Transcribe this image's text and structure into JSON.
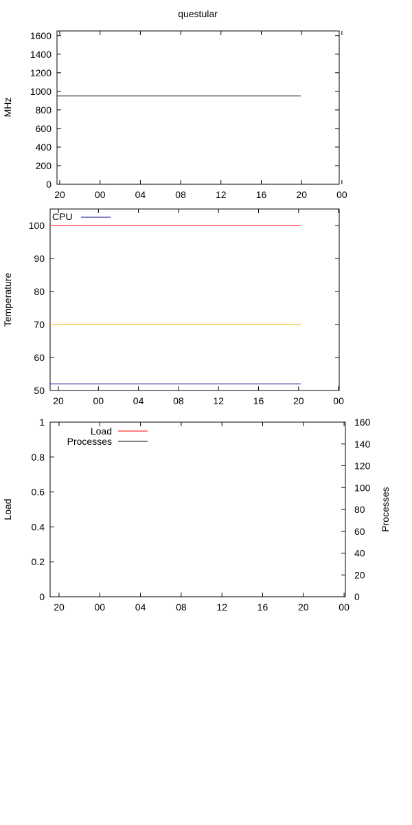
{
  "title": "questular",
  "chart_data": [
    {
      "type": "line",
      "ylabel": "MHz",
      "ylim": [
        0,
        1650
      ],
      "yticks": [
        0,
        200,
        400,
        600,
        800,
        1000,
        1200,
        1400,
        1600
      ],
      "xticks": [
        "20",
        "00",
        "04",
        "08",
        "12",
        "16",
        "20",
        "00"
      ],
      "grid": false,
      "series": [
        {
          "color": "#000000",
          "x": [
            0,
            24
          ],
          "y": [
            950,
            950
          ]
        }
      ]
    },
    {
      "type": "line",
      "ylabel": "Temperature",
      "ylim": [
        50,
        105
      ],
      "yticks": [
        50,
        60,
        70,
        80,
        90,
        100
      ],
      "xticks": [
        "20",
        "00",
        "04",
        "08",
        "12",
        "16",
        "20",
        "00"
      ],
      "grid": false,
      "legend_position": "top-left",
      "series": [
        {
          "name": "CPU",
          "color": "#00008b",
          "x": [
            0,
            24
          ],
          "y": [
            52,
            52
          ]
        },
        {
          "color": "#ff0000",
          "x": [
            0,
            24
          ],
          "y": [
            100,
            100
          ]
        },
        {
          "color": "#ffa500",
          "x": [
            0,
            24
          ],
          "y": [
            70,
            70
          ]
        }
      ]
    },
    {
      "type": "line",
      "ylabel": "Load",
      "y2label": "Processes",
      "ylim": [
        0,
        1
      ],
      "y2lim": [
        0,
        160
      ],
      "yticks": [
        0,
        0.2,
        0.4,
        0.6,
        0.8,
        1
      ],
      "yticklabels": [
        "0",
        "0.2",
        "0.4",
        "0.6",
        "0.8",
        "1"
      ],
      "y2ticks": [
        0,
        20,
        40,
        60,
        80,
        100,
        120,
        140,
        160
      ],
      "xticks": [
        "20",
        "00",
        "04",
        "08",
        "12",
        "16",
        "20",
        "00"
      ],
      "grid": false,
      "legend_position": "top-left",
      "series": [
        {
          "name": "Load",
          "color": "#ff0000",
          "axis": "y",
          "x": [],
          "y": []
        },
        {
          "name": "Processes",
          "color": "#000000",
          "axis": "y2",
          "x": [],
          "y": []
        }
      ]
    }
  ]
}
